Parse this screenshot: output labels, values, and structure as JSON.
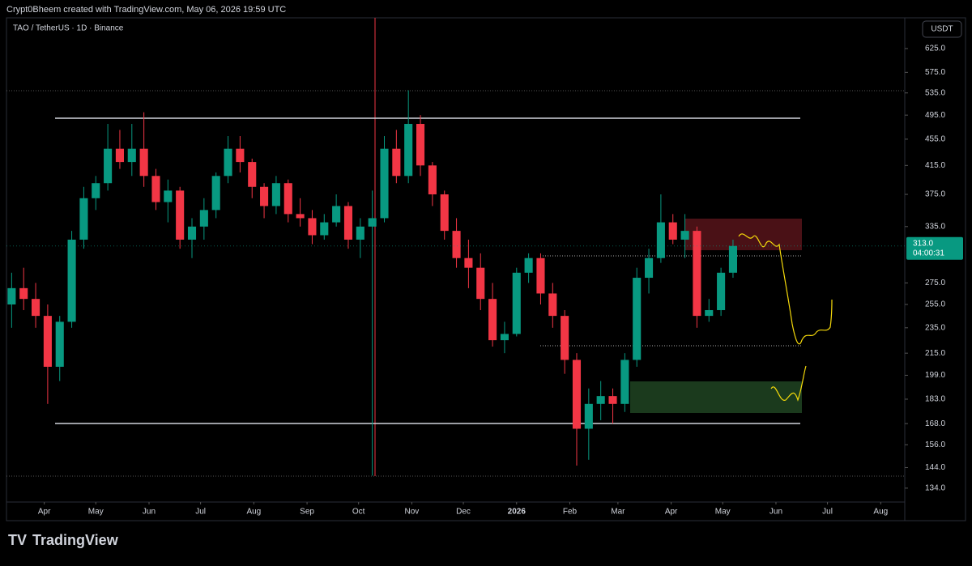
{
  "header": {
    "credit": "Crypt0Bheem created with TradingView.com, May 06, 2026 19:59 UTC",
    "brand": "TradingView"
  },
  "chart_data": {
    "type": "candlestick",
    "title": "TAO / TetherUS · 1D · Binance",
    "currency": "USDT",
    "log_scale": true,
    "grid": false,
    "up_color": "#089981",
    "down_color": "#f23645",
    "x": [
      3,
      10,
      17,
      24,
      31,
      38,
      45,
      52,
      59,
      66,
      73,
      80,
      87,
      94,
      101,
      108,
      115,
      122,
      129,
      136,
      143,
      150,
      157,
      164,
      171,
      178,
      185,
      192,
      199,
      206,
      213,
      220,
      227,
      234,
      241,
      248,
      255,
      262,
      269,
      276,
      283,
      290,
      297,
      304,
      311,
      318,
      325,
      332,
      339,
      346,
      353,
      360,
      367,
      374,
      381,
      388,
      395,
      402,
      409,
      416,
      423
    ],
    "open": [
      255,
      270,
      260,
      245,
      205,
      240,
      320,
      370,
      390,
      440,
      420,
      440,
      400,
      365,
      380,
      320,
      335,
      355,
      400,
      440,
      420,
      385,
      360,
      390,
      350,
      345,
      325,
      340,
      360,
      320,
      335,
      345,
      440,
      400,
      480,
      415,
      375,
      330,
      300,
      290,
      260,
      225,
      230,
      285,
      300,
      265,
      245,
      210,
      165,
      180,
      185,
      180,
      210,
      280,
      300,
      340,
      320,
      330,
      245,
      250,
      285
    ],
    "high": [
      285,
      290,
      275,
      255,
      245,
      330,
      385,
      400,
      480,
      470,
      480,
      500,
      410,
      395,
      385,
      345,
      370,
      405,
      460,
      460,
      425,
      390,
      400,
      395,
      370,
      355,
      350,
      375,
      365,
      345,
      380,
      460,
      470,
      540,
      495,
      420,
      380,
      345,
      320,
      305,
      275,
      240,
      290,
      305,
      305,
      275,
      250,
      215,
      190,
      195,
      190,
      215,
      290,
      310,
      375,
      350,
      350,
      335,
      260,
      290,
      320
    ],
    "low": [
      235,
      250,
      235,
      180,
      195,
      235,
      310,
      355,
      380,
      410,
      400,
      385,
      355,
      340,
      310,
      300,
      320,
      345,
      390,
      405,
      370,
      345,
      350,
      340,
      335,
      315,
      320,
      335,
      310,
      300,
      140,
      340,
      390,
      390,
      400,
      360,
      320,
      290,
      270,
      250,
      220,
      215,
      228,
      275,
      255,
      235,
      200,
      145,
      148,
      170,
      168,
      175,
      205,
      265,
      295,
      315,
      300,
      235,
      240,
      245,
      280
    ],
    "close": [
      270,
      260,
      245,
      205,
      240,
      320,
      370,
      390,
      440,
      420,
      440,
      400,
      365,
      380,
      320,
      335,
      355,
      400,
      440,
      420,
      385,
      360,
      390,
      350,
      345,
      325,
      340,
      360,
      320,
      335,
      345,
      440,
      400,
      480,
      415,
      375,
      330,
      300,
      290,
      260,
      225,
      230,
      285,
      300,
      265,
      245,
      210,
      165,
      180,
      185,
      180,
      210,
      280,
      300,
      340,
      320,
      330,
      245,
      250,
      285,
      313
    ],
    "last_price_label": "313.0",
    "countdown": "04:00:31",
    "xlim": [
      0,
      523
    ],
    "ylim": [
      128,
      700
    ],
    "xticks": [
      {
        "value": 22,
        "label": "Apr"
      },
      {
        "value": 52,
        "label": "May"
      },
      {
        "value": 83,
        "label": "Jun"
      },
      {
        "value": 113,
        "label": "Jul"
      },
      {
        "value": 144,
        "label": "Aug"
      },
      {
        "value": 175,
        "label": "Sep"
      },
      {
        "value": 205,
        "label": "Oct"
      },
      {
        "value": 236,
        "label": "Nov"
      },
      {
        "value": 266,
        "label": "Dec"
      },
      {
        "value": 297,
        "label": "2026"
      },
      {
        "value": 328,
        "label": "Feb"
      },
      {
        "value": 356,
        "label": "Mar"
      },
      {
        "value": 387,
        "label": "Apr"
      },
      {
        "value": 417,
        "label": "May"
      },
      {
        "value": 448,
        "label": "Jun"
      },
      {
        "value": 478,
        "label": "Jul"
      },
      {
        "value": 509,
        "label": "Aug"
      }
    ],
    "yticks": [
      {
        "value": 625,
        "label": "625.0"
      },
      {
        "value": 575,
        "label": "575.0"
      },
      {
        "value": 535,
        "label": "535.0"
      },
      {
        "value": 495,
        "label": "495.0"
      },
      {
        "value": 455,
        "label": "455.0"
      },
      {
        "value": 415,
        "label": "415.0"
      },
      {
        "value": 375,
        "label": "375.0"
      },
      {
        "value": 335,
        "label": "335.0"
      },
      {
        "value": 275,
        "label": "275.0"
      },
      {
        "value": 255,
        "label": "255.0"
      },
      {
        "value": 235,
        "label": "235.0"
      },
      {
        "value": 215,
        "label": "215.0"
      },
      {
        "value": 199,
        "label": "199.0"
      },
      {
        "value": 183,
        "label": "183.0"
      },
      {
        "value": 168,
        "label": "168.0"
      },
      {
        "value": 156,
        "label": "156.0"
      },
      {
        "value": 144,
        "label": "144.0"
      },
      {
        "value": 134,
        "label": "134.0"
      }
    ]
  }
}
